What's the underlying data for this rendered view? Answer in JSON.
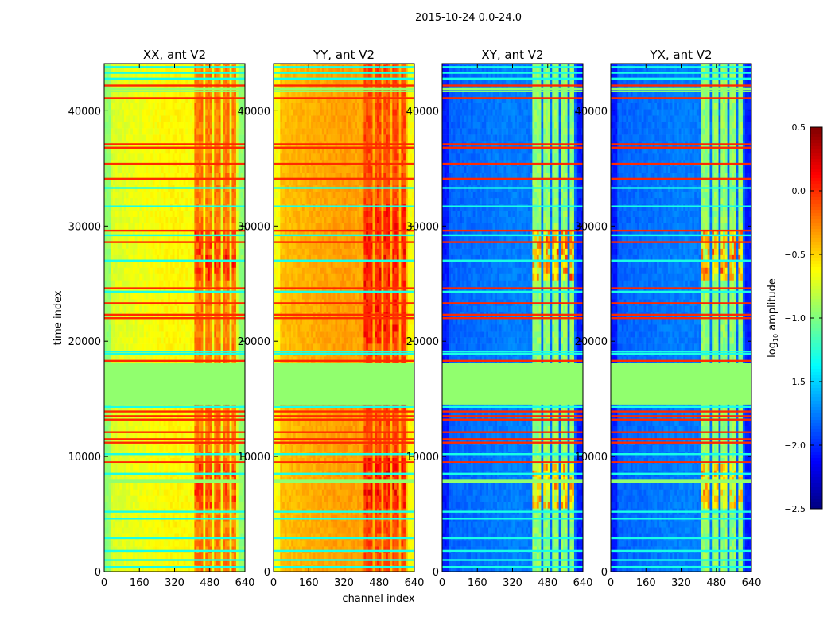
{
  "chart_data": {
    "type": "heatmap",
    "title": "2015-10-24 0.0-24.0",
    "ylabel": "time index",
    "xlabel": "channel index",
    "xlim": [
      0,
      640
    ],
    "ylim": [
      0,
      44100
    ],
    "xticks": [
      "0",
      "160",
      "320",
      "480",
      "640"
    ],
    "xtick_values": [
      0,
      160,
      320,
      480,
      640
    ],
    "yticks": [
      "0",
      "10000",
      "20000",
      "30000",
      "40000"
    ],
    "ytick_values": [
      0,
      10000,
      20000,
      30000,
      40000
    ],
    "colorbar": {
      "label": "log10 amplitude",
      "label_main": "log",
      "label_sub": "10",
      "label_rest": " amplitude",
      "range": [
        -2.5,
        0.5
      ],
      "ticks": [
        "0.5",
        "0.0",
        "−0.5",
        "−1.0",
        "−1.5",
        "−2.0",
        "−2.5"
      ],
      "tick_values": [
        0.5,
        0.0,
        -0.5,
        -1.0,
        -1.5,
        -2.0,
        -2.5
      ],
      "colormap": "jet"
    },
    "flagged_range": [
      14500,
      18100
    ],
    "flagged_value": -0.95,
    "hot_channel_ranges": [
      [
        410,
        450
      ],
      [
        460,
        490
      ],
      [
        500,
        530
      ],
      [
        545,
        570
      ],
      [
        580,
        600
      ]
    ],
    "panels": [
      {
        "title": "XX, ant V2",
        "base": -0.75,
        "center_boost": 0.15,
        "hot": -0.25,
        "active_boost": [
          [
            24800,
            29500,
            0.25
          ],
          [
            5500,
            9000,
            0.2
          ]
        ]
      },
      {
        "title": "YY, ant V2",
        "base": -0.45,
        "center_boost": 0.12,
        "hot": -0.1,
        "active_boost": [
          [
            19500,
            31500,
            0.15
          ],
          [
            5000,
            9500,
            0.2
          ]
        ]
      },
      {
        "title": "XY, ant V2",
        "base": -1.85,
        "center_boost": 0.1,
        "hot": -0.95,
        "active_boost": [
          [
            24800,
            29500,
            0.6
          ],
          [
            5500,
            9000,
            0.5
          ]
        ]
      },
      {
        "title": "YX, ant V2",
        "base": -1.85,
        "center_boost": 0.1,
        "hot": -0.95,
        "active_boost": [
          [
            24800,
            29500,
            0.6
          ],
          [
            5500,
            9000,
            0.5
          ]
        ]
      }
    ],
    "lines": [
      {
        "t": 43800,
        "v": -1.3
      },
      {
        "t": 43300,
        "v": -1.3
      },
      {
        "t": 42800,
        "v": -1.3
      },
      {
        "t": 42200,
        "v": 0.0
      },
      {
        "t": 41900,
        "v": -0.95
      },
      {
        "t": 41700,
        "v": -0.95
      },
      {
        "t": 41100,
        "v": 0.0
      },
      {
        "t": 37100,
        "v": 0.0
      },
      {
        "t": 36800,
        "v": 0.0
      },
      {
        "t": 35400,
        "v": 0.0
      },
      {
        "t": 34100,
        "v": 0.0
      },
      {
        "t": 33300,
        "v": -1.3
      },
      {
        "t": 31700,
        "v": -1.3
      },
      {
        "t": 29600,
        "v": 0.0
      },
      {
        "t": 29200,
        "v": -1.3
      },
      {
        "t": 28600,
        "v": 0.0
      },
      {
        "t": 27000,
        "v": -1.3
      },
      {
        "t": 24600,
        "v": 0.0
      },
      {
        "t": 24300,
        "v": -1.3
      },
      {
        "t": 23300,
        "v": 0.0
      },
      {
        "t": 22300,
        "v": 0.0
      },
      {
        "t": 22000,
        "v": 0.0
      },
      {
        "t": 19100,
        "v": -1.3
      },
      {
        "t": 18900,
        "v": -1.3
      },
      {
        "t": 18300,
        "v": 0.0
      },
      {
        "t": 14300,
        "v": -1.3
      },
      {
        "t": 13900,
        "v": 0.0
      },
      {
        "t": 13500,
        "v": 0.0
      },
      {
        "t": 13200,
        "v": 0.0
      },
      {
        "t": 12100,
        "v": 0.0
      },
      {
        "t": 11500,
        "v": 0.0
      },
      {
        "t": 11200,
        "v": 0.0
      },
      {
        "t": 10200,
        "v": -1.3
      },
      {
        "t": 9500,
        "v": 0.0
      },
      {
        "t": 8500,
        "v": -1.3
      },
      {
        "t": 7900,
        "v": -0.95
      },
      {
        "t": 7800,
        "v": -0.95
      },
      {
        "t": 5200,
        "v": -1.3
      },
      {
        "t": 4600,
        "v": -1.3
      },
      {
        "t": 2900,
        "v": -1.3
      },
      {
        "t": 1800,
        "v": -1.3
      },
      {
        "t": 1000,
        "v": -1.3
      },
      {
        "t": 400,
        "v": -1.3
      }
    ]
  }
}
